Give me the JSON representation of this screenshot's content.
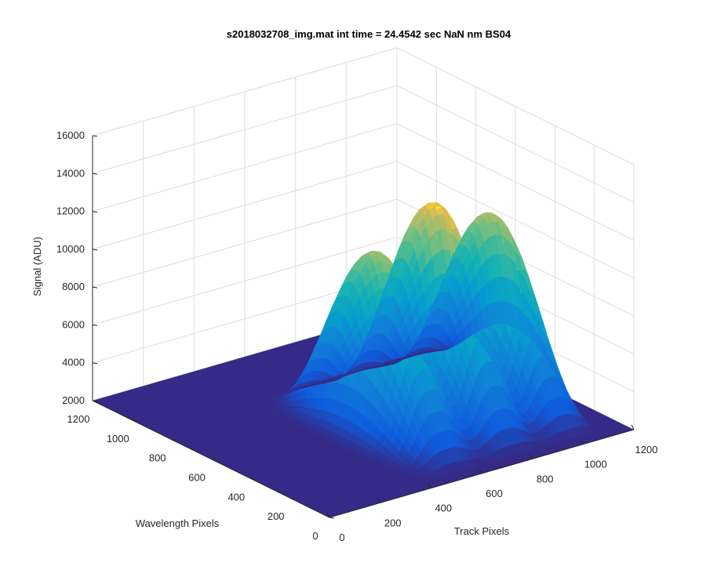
{
  "chart_data": {
    "type": "surface",
    "title": "s2018032708_img.mat int time = 24.4542 sec  NaN nm BS04",
    "xlabel": "Track Pixels",
    "ylabel": "Wavelength Pixels",
    "zlabel": "Signal (ADU)",
    "xlim": [
      0,
      1200
    ],
    "ylim": [
      0,
      1200
    ],
    "zlim": [
      2000,
      16000
    ],
    "xticks": [
      "0",
      "200",
      "400",
      "600",
      "800",
      "1000",
      "1200"
    ],
    "yticks": [
      "0",
      "200",
      "400",
      "600",
      "800",
      "1000",
      "1200"
    ],
    "zticks": [
      "2000",
      "4000",
      "6000",
      "8000",
      "10000",
      "12000",
      "14000",
      "16000"
    ],
    "grid": true,
    "colormap": "parula",
    "baseline": 2000,
    "peaks": [
      {
        "track_center": 560,
        "track_width": 180,
        "wavelength_range": [
          100,
          850
        ],
        "max_signal": 11400
      },
      {
        "track_center": 790,
        "track_width": 170,
        "wavelength_range": [
          100,
          850
        ],
        "max_signal": 13100
      },
      {
        "track_center": 1010,
        "track_width": 160,
        "wavelength_range": [
          100,
          850
        ],
        "max_signal": 11700
      }
    ],
    "small_bumps": [
      {
        "track": 200,
        "wavelength": 1050,
        "signal": 2500
      },
      {
        "track": 350,
        "wavelength": 1050,
        "signal": 2400
      }
    ]
  }
}
